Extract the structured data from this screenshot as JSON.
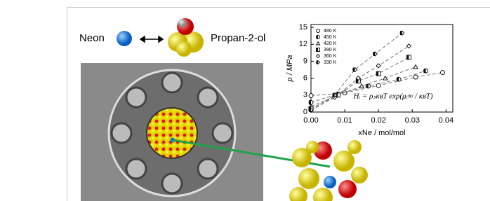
{
  "labels": {
    "left": "Neon",
    "right": "Propan-2-ol"
  },
  "chart_data": {
    "type": "scatter",
    "x_label": "xNe / mol/mol",
    "y_label": "p / MPa",
    "annotation": "Hᵢ = ρₛκʙT exp(μᵢ∞ / κʙT)",
    "xlim": [
      0,
      0.042
    ],
    "ylim": [
      0,
      15.5
    ],
    "xticks": [
      {
        "value": 0,
        "label": "0.00"
      },
      {
        "value": 0.01,
        "label": "0.01"
      },
      {
        "value": 0.02,
        "label": "0.02"
      },
      {
        "value": 0.03,
        "label": "0.03"
      },
      {
        "value": 0.04,
        "label": "0.04"
      }
    ],
    "yticks": [
      0,
      3,
      6,
      9,
      12,
      15
    ],
    "legend": "upper-left",
    "series": [
      {
        "name": "480 K",
        "marker": "circle-open",
        "color": "#000",
        "x": [
          0,
          0.01,
          0.02,
          0.031,
          0.039
        ],
        "values": [
          2.9,
          3.4,
          4.7,
          6.2,
          7.0
        ]
      },
      {
        "name": "450 K",
        "marker": "circle-half",
        "color": "#000",
        "x": [
          0,
          0.008,
          0.017,
          0.026,
          0.034
        ],
        "values": [
          1.7,
          3.2,
          4.6,
          5.8,
          7.3
        ]
      },
      {
        "name": "420 K",
        "marker": "triangle-open",
        "color": "#000",
        "x": [
          0,
          0.008,
          0.015,
          0.022,
          0.031
        ],
        "values": [
          1.0,
          3.0,
          4.6,
          6.0,
          8.0
        ]
      },
      {
        "name": "390 K",
        "marker": "square-half",
        "color": "#000",
        "x": [
          0,
          0.008,
          0.014,
          0.02,
          0.029
        ],
        "values": [
          0.6,
          3.0,
          5.5,
          6.8,
          9.7
        ]
      },
      {
        "name": "360 K",
        "marker": "diamond-open",
        "color": "#000",
        "x": [
          0,
          0.007,
          0.014,
          0.02,
          0.029
        ],
        "values": [
          0.3,
          2.6,
          6.0,
          8.2,
          11.7
        ]
      },
      {
        "name": "330 K",
        "marker": "diamond-half",
        "color": "#000",
        "x": [
          0,
          0.007,
          0.013,
          0.019,
          0.027
        ],
        "values": [
          0.4,
          3.0,
          7.5,
          10.3,
          14.0
        ]
      }
    ]
  }
}
